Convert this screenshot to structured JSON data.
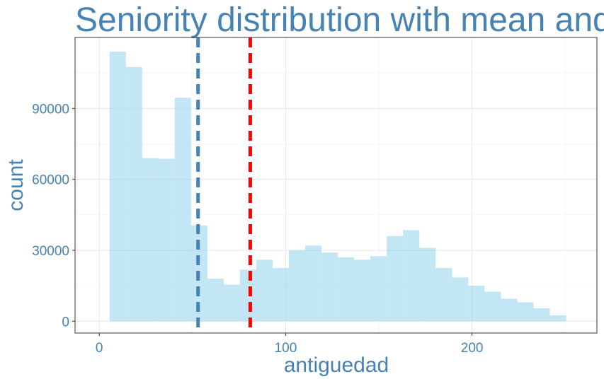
{
  "chart_data": {
    "type": "bar",
    "title": "Seniority distribution with mean and",
    "xlabel": "antiguedad",
    "ylabel": "count",
    "xlim": [
      -13,
      267
    ],
    "ylim": [
      -5000,
      120000
    ],
    "x_ticks": [
      0,
      100,
      200
    ],
    "x_tick_labels": [
      "0",
      "100",
      "200"
    ],
    "y_ticks": [
      0,
      30000,
      60000,
      90000
    ],
    "y_tick_labels": [
      "0",
      "30000",
      "60000",
      "90000"
    ],
    "grid": true,
    "bar_color": "#87CEEB",
    "bins": {
      "start": 5.5,
      "width": 8.75,
      "counts": [
        114000,
        107500,
        69000,
        68700,
        94500,
        40500,
        18000,
        15500,
        21800,
        26000,
        22500,
        30000,
        32000,
        29000,
        27000,
        26000,
        27500,
        36000,
        38500,
        31000,
        22500,
        18500,
        15000,
        12500,
        9500,
        8000,
        5500,
        2500
      ]
    },
    "reference_lines": [
      {
        "x": 53,
        "color": "#4682B4",
        "style": "dashed"
      },
      {
        "x": 81,
        "color": "#FF0000",
        "style": "dashed"
      }
    ]
  }
}
